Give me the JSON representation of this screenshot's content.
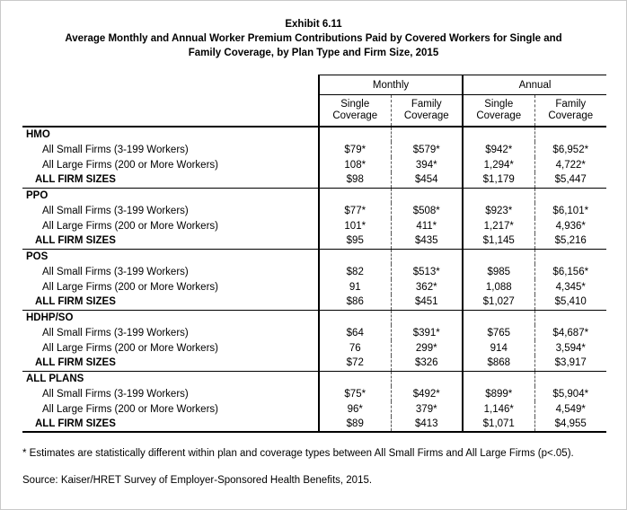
{
  "title": {
    "exhibit": "Exhibit 6.11",
    "line1": "Average Monthly and Annual Worker Premium Contributions Paid by Covered Workers for Single and",
    "line2": "Family Coverage, by Plan Type and Firm Size, 2015"
  },
  "table": {
    "column_groups": [
      "Monthly",
      "Annual"
    ],
    "columns": [
      "Single Coverage",
      "Family Coverage",
      "Single Coverage",
      "Family Coverage"
    ],
    "groups": [
      {
        "plan": "HMO",
        "rows": [
          {
            "label": "All Small Firms (3-199 Workers)",
            "bold": false,
            "values": [
              "$79*",
              "$579*",
              "$942*",
              "$6,952*"
            ]
          },
          {
            "label": "All Large Firms (200 or More Workers)",
            "bold": false,
            "values": [
              "108*",
              "394*",
              "1,294*",
              "4,722*"
            ]
          },
          {
            "label": "ALL FIRM SIZES",
            "bold": true,
            "values": [
              "$98",
              "$454",
              "$1,179",
              "$5,447"
            ]
          }
        ]
      },
      {
        "plan": "PPO",
        "rows": [
          {
            "label": "All Small Firms (3-199 Workers)",
            "bold": false,
            "values": [
              "$77*",
              "$508*",
              "$923*",
              "$6,101*"
            ]
          },
          {
            "label": "All Large Firms (200 or More Workers)",
            "bold": false,
            "values": [
              "101*",
              "411*",
              "1,217*",
              "4,936*"
            ]
          },
          {
            "label": "ALL FIRM SIZES",
            "bold": true,
            "values": [
              "$95",
              "$435",
              "$1,145",
              "$5,216"
            ]
          }
        ]
      },
      {
        "plan": "POS",
        "rows": [
          {
            "label": "All Small Firms (3-199 Workers)",
            "bold": false,
            "values": [
              "$82",
              "$513*",
              "$985",
              "$6,156*"
            ]
          },
          {
            "label": "All Large Firms (200 or More Workers)",
            "bold": false,
            "values": [
              "91",
              "362*",
              "1,088",
              "4,345*"
            ]
          },
          {
            "label": "ALL FIRM SIZES",
            "bold": true,
            "values": [
              "$86",
              "$451",
              "$1,027",
              "$5,410"
            ]
          }
        ]
      },
      {
        "plan": "HDHP/SO",
        "rows": [
          {
            "label": "All Small Firms (3-199 Workers)",
            "bold": false,
            "values": [
              "$64",
              "$391*",
              "$765",
              "$4,687*"
            ]
          },
          {
            "label": "All Large Firms (200 or More Workers)",
            "bold": false,
            "values": [
              "76",
              "299*",
              "914",
              "3,594*"
            ]
          },
          {
            "label": "ALL FIRM SIZES",
            "bold": true,
            "values": [
              "$72",
              "$326",
              "$868",
              "$3,917"
            ]
          }
        ]
      },
      {
        "plan": "ALL PLANS",
        "rows": [
          {
            "label": "All Small Firms (3-199 Workers)",
            "bold": false,
            "values": [
              "$75*",
              "$492*",
              "$899*",
              "$5,904*"
            ]
          },
          {
            "label": "All Large Firms (200 or More Workers)",
            "bold": false,
            "values": [
              "96*",
              "379*",
              "1,146*",
              "4,549*"
            ]
          },
          {
            "label": "ALL FIRM SIZES",
            "bold": true,
            "values": [
              "$89",
              "$413",
              "$1,071",
              "$4,955"
            ]
          }
        ]
      }
    ]
  },
  "footnotes": {
    "asterisk": "* Estimates are statistically different within plan and coverage types between All Small Firms and All Large Firms (p<.05).",
    "source": "Source: Kaiser/HRET Survey of Employer-Sponsored Health Benefits, 2015."
  }
}
